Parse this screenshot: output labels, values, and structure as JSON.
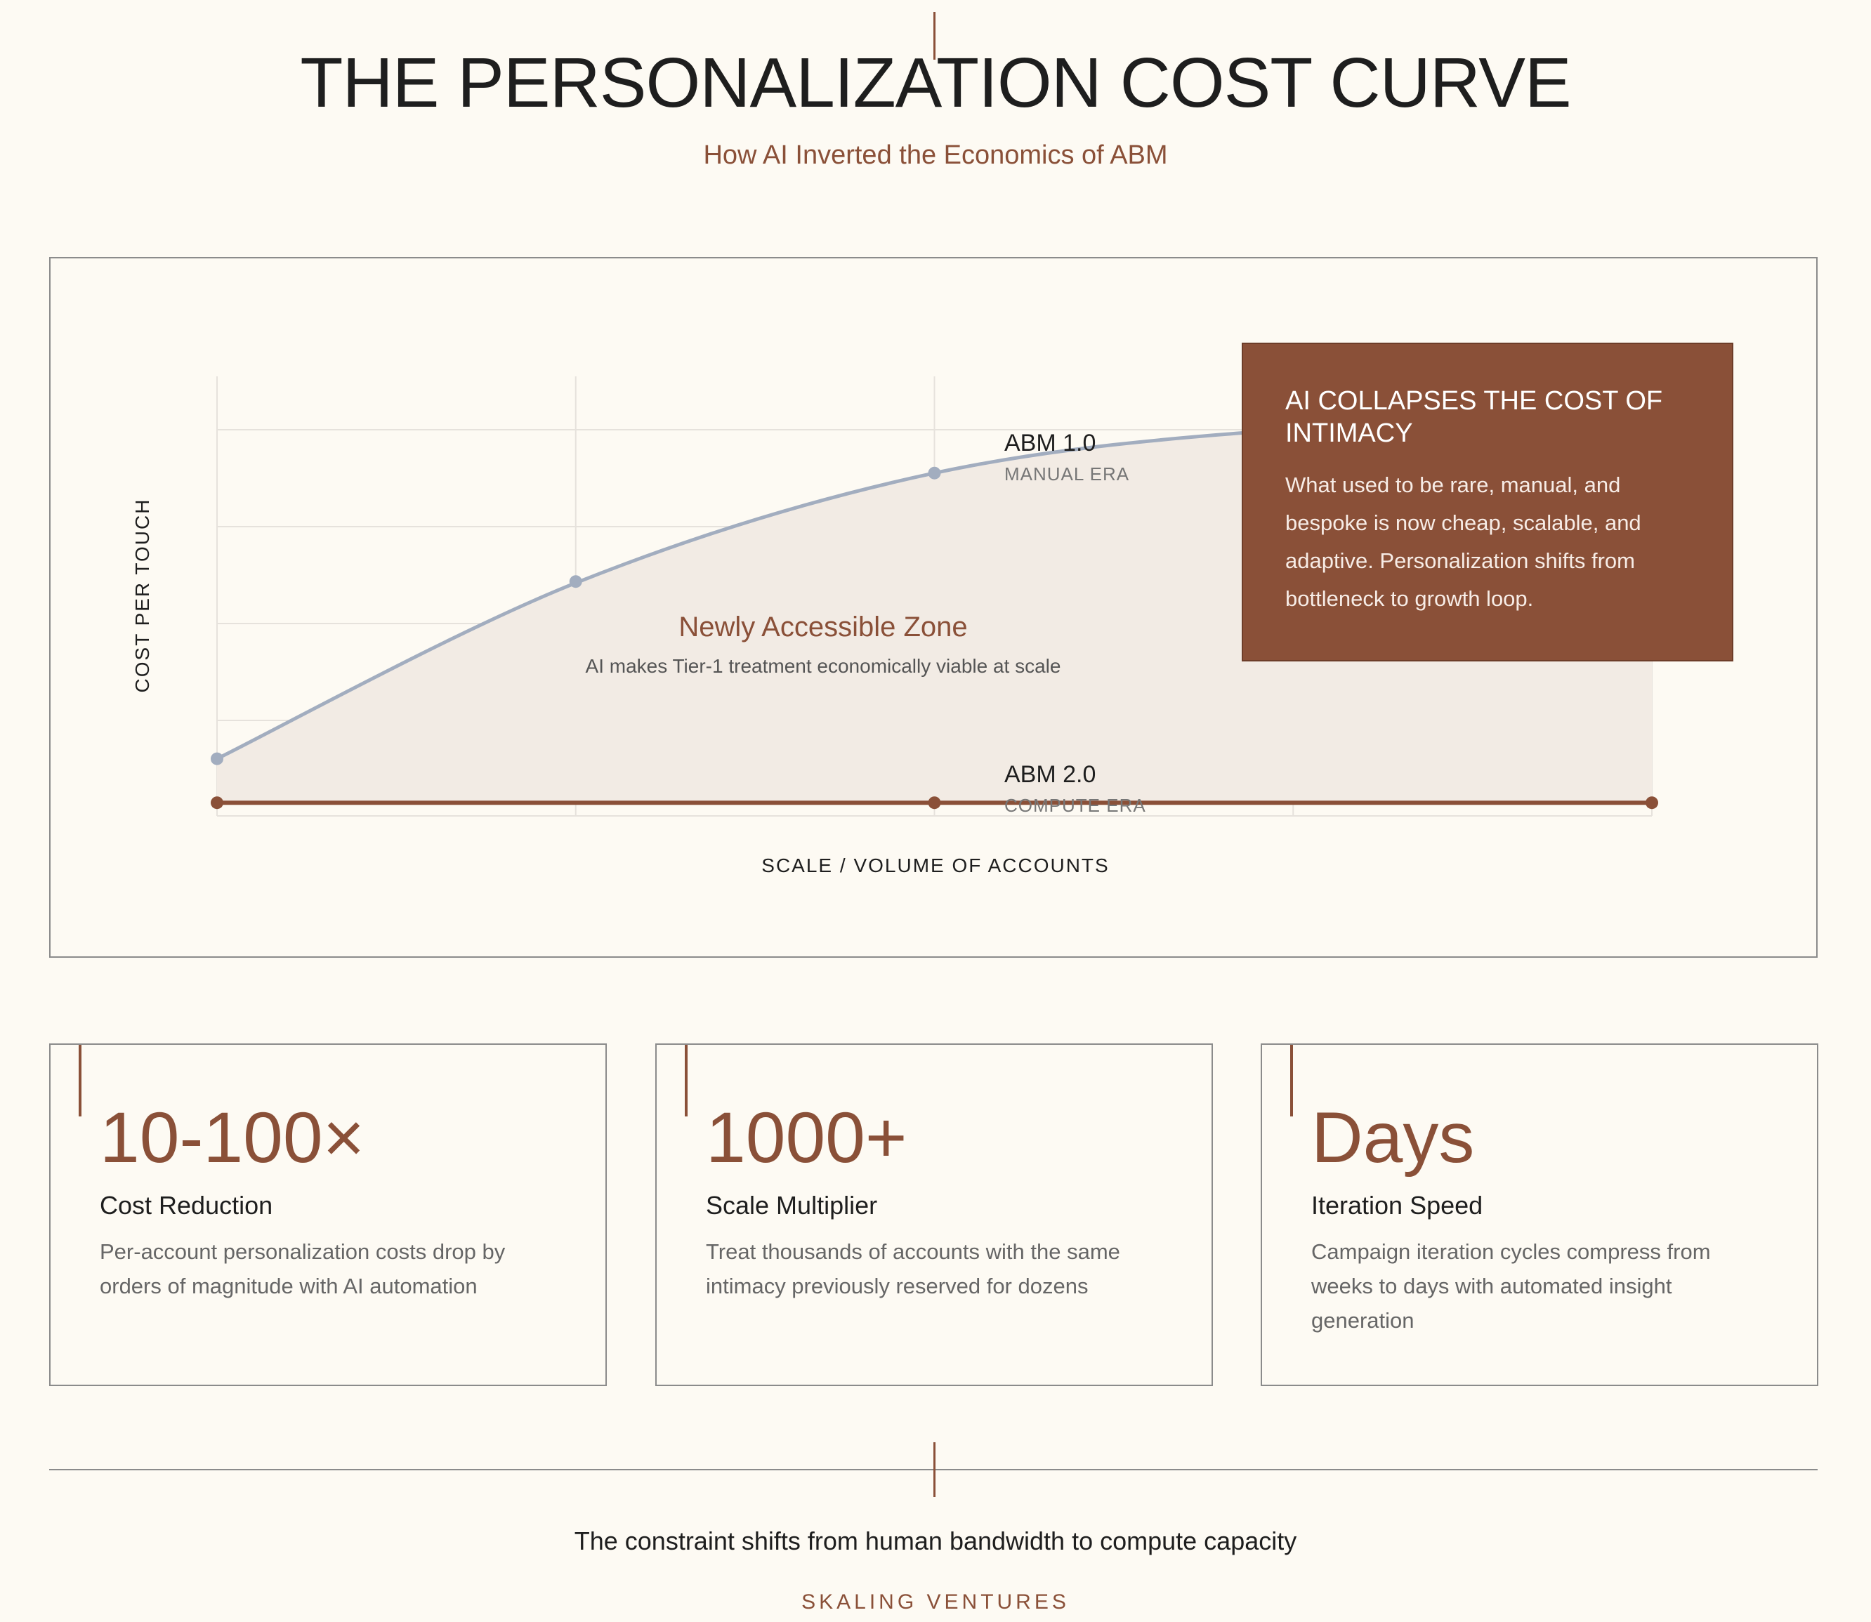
{
  "header": {
    "title": "THE PERSONALIZATION COST CURVE",
    "subtitle": "How AI Inverted the Economics of ABM"
  },
  "chart_data": {
    "type": "line",
    "xlabel": "SCALE / VOLUME OF ACCOUNTS",
    "ylabel": "COST PER TOUCH",
    "xlim": [
      0,
      4
    ],
    "ylim": [
      0,
      100
    ],
    "grid": true,
    "series": [
      {
        "name": "ABM 1.0",
        "sublabel": "MANUAL ERA",
        "color": "#a2adbf",
        "x": [
          0,
          1,
          2,
          3,
          4
        ],
        "y": [
          13,
          53,
          78,
          88,
          90
        ]
      },
      {
        "name": "ABM 2.0",
        "sublabel": "COMPUTE ERA",
        "color": "#8a5038",
        "x": [
          0,
          2,
          4
        ],
        "y": [
          3,
          3,
          3
        ]
      }
    ],
    "zone": {
      "title": "Newly Accessible Zone",
      "subtitle": "AI makes Tier-1 treatment economically viable at scale"
    }
  },
  "callout": {
    "title": "AI COLLAPSES THE COST OF INTIMACY",
    "body": "What used to be rare, manual, and bespoke is now cheap, scalable, and adaptive. Personalization shifts from bottleneck to growth loop."
  },
  "stats": [
    {
      "value": "10-100×",
      "label": "Cost Reduction",
      "desc": "Per-account personalization costs drop by orders of magnitude with AI automation"
    },
    {
      "value": "1000+",
      "label": "Scale Multiplier",
      "desc": "Treat thousands of accounts with the same intimacy previously reserved for dozens"
    },
    {
      "value": "Days",
      "label": "Iteration Speed",
      "desc": "Campaign iteration cycles compress from weeks to days with automated insight generation"
    }
  ],
  "footer": {
    "tagline": "The constraint shifts from human bandwidth to compute capacity",
    "brand": "SKALING VENTURES"
  }
}
